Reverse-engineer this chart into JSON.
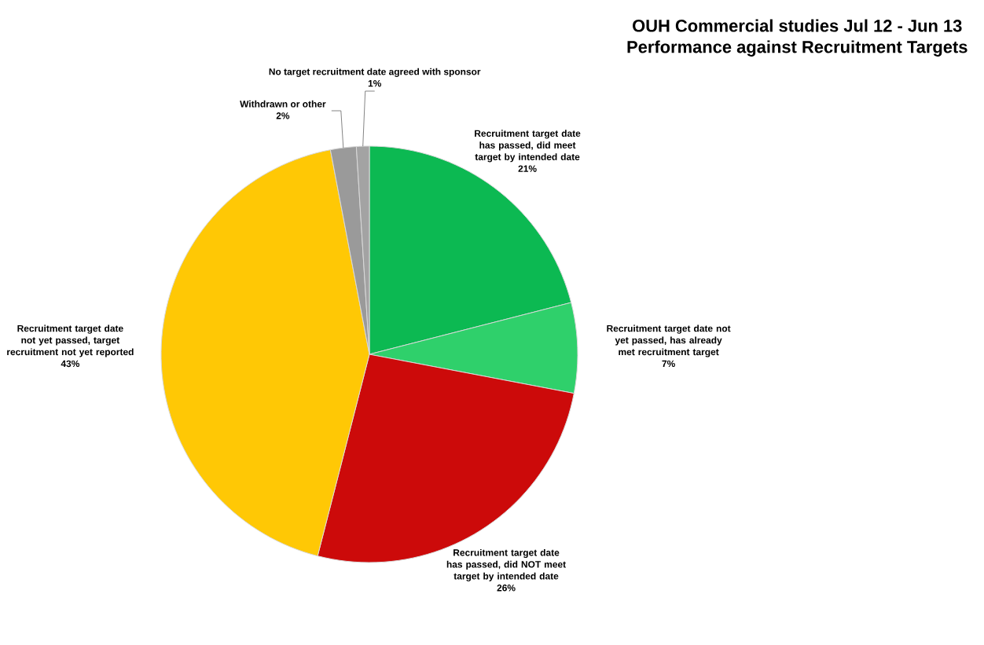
{
  "chart_data": {
    "type": "pie",
    "title": "OUH Commercial studies Jul 12 - Jun 13",
    "subtitle": "Performance against Recruitment Targets",
    "categories": [
      "Recruitment target date has passed, did meet target by intended date",
      "Recruitment target date not yet passed, has already met recruitment target",
      "Recruitment target date has passed, did NOT meet target by intended date",
      "Recruitment target date not yet passed, target recruitment not yet reported",
      "Withdrawn or other",
      "No target recruitment date agreed with sponsor"
    ],
    "values": [
      21,
      7,
      26,
      43,
      2,
      1
    ],
    "value_labels": [
      "21%",
      "7%",
      "26%",
      "43%",
      "2%",
      "1%"
    ],
    "colors": [
      "#0cb952",
      "#2fd06b",
      "#cc0a0a",
      "#ffc805",
      "#9a9a9a",
      "#a3a3a3"
    ]
  }
}
